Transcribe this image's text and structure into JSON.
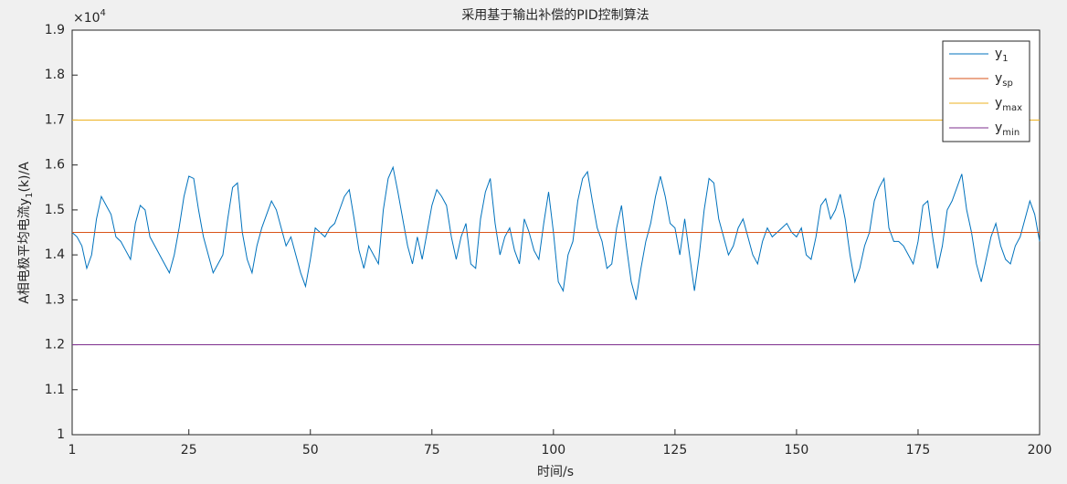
{
  "chart_data": {
    "type": "line",
    "title": "采用基于输出补偿的PID控制算法",
    "xlabel": "时间/s",
    "ylabel": [
      "A相电极平均电流y",
      "1",
      "(k)/A"
    ],
    "y_multiplier": [
      "×10",
      "4"
    ],
    "xlim": [
      1,
      200
    ],
    "xticks": [
      1,
      25,
      50,
      75,
      100,
      125,
      150,
      175,
      200
    ],
    "ylim": [
      1,
      1.9
    ],
    "yticks": [
      1,
      1.1,
      1.2,
      1.3,
      1.4,
      1.5,
      1.6,
      1.7,
      1.8,
      1.9
    ],
    "grid": false,
    "legend": "top-right",
    "series": [
      {
        "name": "y",
        "subscript": "1",
        "color": "#0072bd",
        "x": [
          1,
          2,
          3,
          4,
          5,
          6,
          7,
          8,
          9,
          10,
          11,
          12,
          13,
          14,
          15,
          16,
          17,
          18,
          19,
          20,
          21,
          22,
          23,
          24,
          25,
          26,
          27,
          28,
          29,
          30,
          31,
          32,
          33,
          34,
          35,
          36,
          37,
          38,
          39,
          40,
          41,
          42,
          43,
          44,
          45,
          46,
          47,
          48,
          49,
          50,
          51,
          52,
          53,
          54,
          55,
          56,
          57,
          58,
          59,
          60,
          61,
          62,
          63,
          64,
          65,
          66,
          67,
          68,
          69,
          70,
          71,
          72,
          73,
          74,
          75,
          76,
          77,
          78,
          79,
          80,
          81,
          82,
          83,
          84,
          85,
          86,
          87,
          88,
          89,
          90,
          91,
          92,
          93,
          94,
          95,
          96,
          97,
          98,
          99,
          100,
          101,
          102,
          103,
          104,
          105,
          106,
          107,
          108,
          109,
          110,
          111,
          112,
          113,
          114,
          115,
          116,
          117,
          118,
          119,
          120,
          121,
          122,
          123,
          124,
          125,
          126,
          127,
          128,
          129,
          130,
          131,
          132,
          133,
          134,
          135,
          136,
          137,
          138,
          139,
          140,
          141,
          142,
          143,
          144,
          145,
          146,
          147,
          148,
          149,
          150,
          151,
          152,
          153,
          154,
          155,
          156,
          157,
          158,
          159,
          160,
          161,
          162,
          163,
          164,
          165,
          166,
          167,
          168,
          169,
          170,
          171,
          172,
          173,
          174,
          175,
          176,
          177,
          178,
          179,
          180,
          181,
          182,
          183,
          184,
          185,
          186,
          187,
          188,
          189,
          190,
          191,
          192,
          193,
          194,
          195,
          196,
          197,
          198,
          199,
          200
        ],
        "values": [
          1.45,
          1.44,
          1.42,
          1.37,
          1.4,
          1.48,
          1.53,
          1.51,
          1.49,
          1.44,
          1.43,
          1.41,
          1.39,
          1.47,
          1.51,
          1.5,
          1.44,
          1.42,
          1.4,
          1.38,
          1.36,
          1.4,
          1.46,
          1.53,
          1.575,
          1.57,
          1.5,
          1.44,
          1.4,
          1.36,
          1.38,
          1.4,
          1.48,
          1.55,
          1.56,
          1.45,
          1.39,
          1.36,
          1.42,
          1.46,
          1.49,
          1.52,
          1.5,
          1.46,
          1.42,
          1.44,
          1.4,
          1.36,
          1.33,
          1.39,
          1.46,
          1.45,
          1.44,
          1.46,
          1.47,
          1.5,
          1.53,
          1.545,
          1.48,
          1.41,
          1.37,
          1.42,
          1.4,
          1.38,
          1.5,
          1.57,
          1.595,
          1.54,
          1.48,
          1.42,
          1.38,
          1.44,
          1.39,
          1.45,
          1.51,
          1.545,
          1.53,
          1.51,
          1.44,
          1.39,
          1.44,
          1.47,
          1.38,
          1.37,
          1.48,
          1.54,
          1.57,
          1.47,
          1.4,
          1.44,
          1.46,
          1.41,
          1.38,
          1.48,
          1.45,
          1.41,
          1.39,
          1.47,
          1.54,
          1.45,
          1.34,
          1.32,
          1.4,
          1.43,
          1.52,
          1.57,
          1.585,
          1.52,
          1.46,
          1.43,
          1.37,
          1.38,
          1.46,
          1.51,
          1.42,
          1.34,
          1.3,
          1.37,
          1.43,
          1.47,
          1.53,
          1.575,
          1.53,
          1.47,
          1.46,
          1.4,
          1.48,
          1.4,
          1.32,
          1.4,
          1.5,
          1.57,
          1.56,
          1.48,
          1.44,
          1.4,
          1.42,
          1.46,
          1.48,
          1.44,
          1.4,
          1.38,
          1.43,
          1.46,
          1.44,
          1.45,
          1.46,
          1.47,
          1.45,
          1.44,
          1.46,
          1.4,
          1.39,
          1.44,
          1.51,
          1.525,
          1.48,
          1.5,
          1.535,
          1.48,
          1.4,
          1.34,
          1.37,
          1.42,
          1.45,
          1.52,
          1.55,
          1.57,
          1.46,
          1.43,
          1.43,
          1.42,
          1.4,
          1.38,
          1.43,
          1.51,
          1.52,
          1.44,
          1.37,
          1.42,
          1.5,
          1.52,
          1.55,
          1.58,
          1.5,
          1.45,
          1.38,
          1.34,
          1.39,
          1.44,
          1.47,
          1.42,
          1.39,
          1.38,
          1.42,
          1.44,
          1.48,
          1.52,
          1.49,
          1.43
        ]
      },
      {
        "name": "y",
        "subscript": "sp",
        "color": "#d95319",
        "x": [
          1,
          200
        ],
        "values": [
          1.45,
          1.45
        ]
      },
      {
        "name": "y",
        "subscript": "max",
        "color": "#edb120",
        "x": [
          1,
          200
        ],
        "values": [
          1.7,
          1.7
        ]
      },
      {
        "name": "y",
        "subscript": "min",
        "color": "#7e2f8e",
        "x": [
          1,
          200
        ],
        "values": [
          1.2,
          1.2
        ]
      }
    ]
  }
}
